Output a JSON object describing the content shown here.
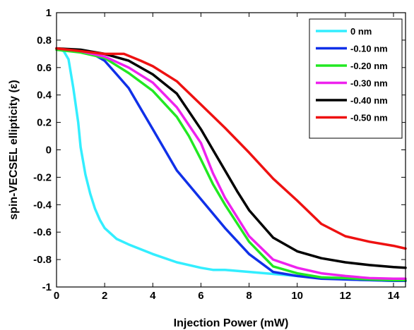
{
  "chart_data": {
    "type": "line",
    "xlabel": "Injection Power (mW)",
    "ylabel": "spin-VECSEL ellipticity (ε)",
    "xlim": [
      0,
      14.5
    ],
    "ylim": [
      -1,
      1
    ],
    "xticks": [
      0,
      2,
      4,
      6,
      8,
      10,
      12,
      14
    ],
    "xtick_labels": [
      "0",
      "2",
      "4",
      "6",
      "8",
      "10",
      "12",
      "14"
    ],
    "yticks": [
      -1,
      -0.8,
      -0.6,
      -0.4,
      -0.2,
      0,
      0.2,
      0.4,
      0.6,
      0.8,
      1
    ],
    "ytick_labels": [
      "-1",
      "-0.8",
      "-0.6",
      "-0.4",
      "-0.2",
      "0",
      "0.2",
      "0.4",
      "0.6",
      "0.8",
      "1"
    ],
    "grid": false,
    "legend_position": "top-right",
    "series": [
      {
        "name": "0 nm",
        "color": "#33eeff",
        "x": [
          0,
          0.3,
          0.5,
          0.7,
          0.9,
          1.0,
          1.2,
          1.4,
          1.6,
          1.8,
          2.0,
          2.5,
          3.0,
          4.0,
          5.0,
          6.0,
          6.5,
          7.0,
          8.0,
          9.0,
          10.0,
          11.0,
          12.0,
          13.0,
          14.0,
          14.5
        ],
        "y": [
          0.74,
          0.72,
          0.66,
          0.45,
          0.2,
          0.02,
          -0.18,
          -0.32,
          -0.43,
          -0.51,
          -0.57,
          -0.65,
          -0.69,
          -0.76,
          -0.82,
          -0.86,
          -0.875,
          -0.875,
          -0.89,
          -0.905,
          -0.92,
          -0.93,
          -0.945,
          -0.95,
          -0.955,
          -0.955
        ]
      },
      {
        "name": "-0.10 nm",
        "color": "#1030e8",
        "x": [
          0,
          1.0,
          1.5,
          2.0,
          2.5,
          3.0,
          3.5,
          4.0,
          4.5,
          5.0,
          6.0,
          7.0,
          8.0,
          9.0,
          10.0,
          11.0,
          12.0,
          13.0,
          14.0,
          14.5
        ],
        "y": [
          0.74,
          0.72,
          0.7,
          0.65,
          0.55,
          0.45,
          0.3,
          0.15,
          0.0,
          -0.15,
          -0.36,
          -0.57,
          -0.76,
          -0.89,
          -0.92,
          -0.94,
          -0.945,
          -0.95,
          -0.955,
          -0.955
        ]
      },
      {
        "name": "-0.20 nm",
        "color": "#22e822",
        "x": [
          0,
          1.0,
          2.0,
          3.0,
          4.0,
          5.0,
          5.5,
          6.0,
          6.5,
          7.0,
          8.0,
          9.0,
          10.0,
          11.0,
          12.0,
          13.0,
          14.0,
          14.5
        ],
        "y": [
          0.73,
          0.71,
          0.67,
          0.56,
          0.43,
          0.24,
          0.1,
          -0.07,
          -0.25,
          -0.4,
          -0.67,
          -0.85,
          -0.9,
          -0.93,
          -0.935,
          -0.945,
          -0.95,
          -0.95
        ]
      },
      {
        "name": "-0.30 nm",
        "color": "#ee22ee",
        "x": [
          0,
          1.0,
          2.0,
          3.0,
          4.0,
          5.0,
          5.5,
          6.0,
          6.5,
          7.0,
          8.0,
          9.0,
          10.0,
          11.0,
          12.0,
          13.0,
          14.0,
          14.5
        ],
        "y": [
          0.74,
          0.72,
          0.68,
          0.6,
          0.49,
          0.31,
          0.18,
          0.05,
          -0.17,
          -0.35,
          -0.63,
          -0.8,
          -0.86,
          -0.9,
          -0.92,
          -0.935,
          -0.94,
          -0.94
        ]
      },
      {
        "name": "-0.40 nm",
        "color": "#000000",
        "x": [
          0,
          1.0,
          2.0,
          3.0,
          4.0,
          5.0,
          6.0,
          6.5,
          7.0,
          7.5,
          8.0,
          9.0,
          10.0,
          11.0,
          12.0,
          13.0,
          14.0,
          14.5
        ],
        "y": [
          0.74,
          0.73,
          0.7,
          0.65,
          0.55,
          0.41,
          0.15,
          0.0,
          -0.15,
          -0.3,
          -0.44,
          -0.64,
          -0.74,
          -0.79,
          -0.82,
          -0.84,
          -0.855,
          -0.86
        ]
      },
      {
        "name": "-0.50 nm",
        "color": "#ee1111",
        "x": [
          0,
          1.0,
          2.0,
          2.8,
          3.5,
          4.0,
          5.0,
          6.0,
          7.0,
          8.0,
          9.0,
          10.0,
          11.0,
          12.0,
          13.0,
          14.0,
          14.5
        ],
        "y": [
          0.74,
          0.72,
          0.7,
          0.7,
          0.65,
          0.61,
          0.5,
          0.33,
          0.16,
          -0.02,
          -0.21,
          -0.37,
          -0.54,
          -0.63,
          -0.67,
          -0.7,
          -0.72
        ]
      }
    ]
  }
}
